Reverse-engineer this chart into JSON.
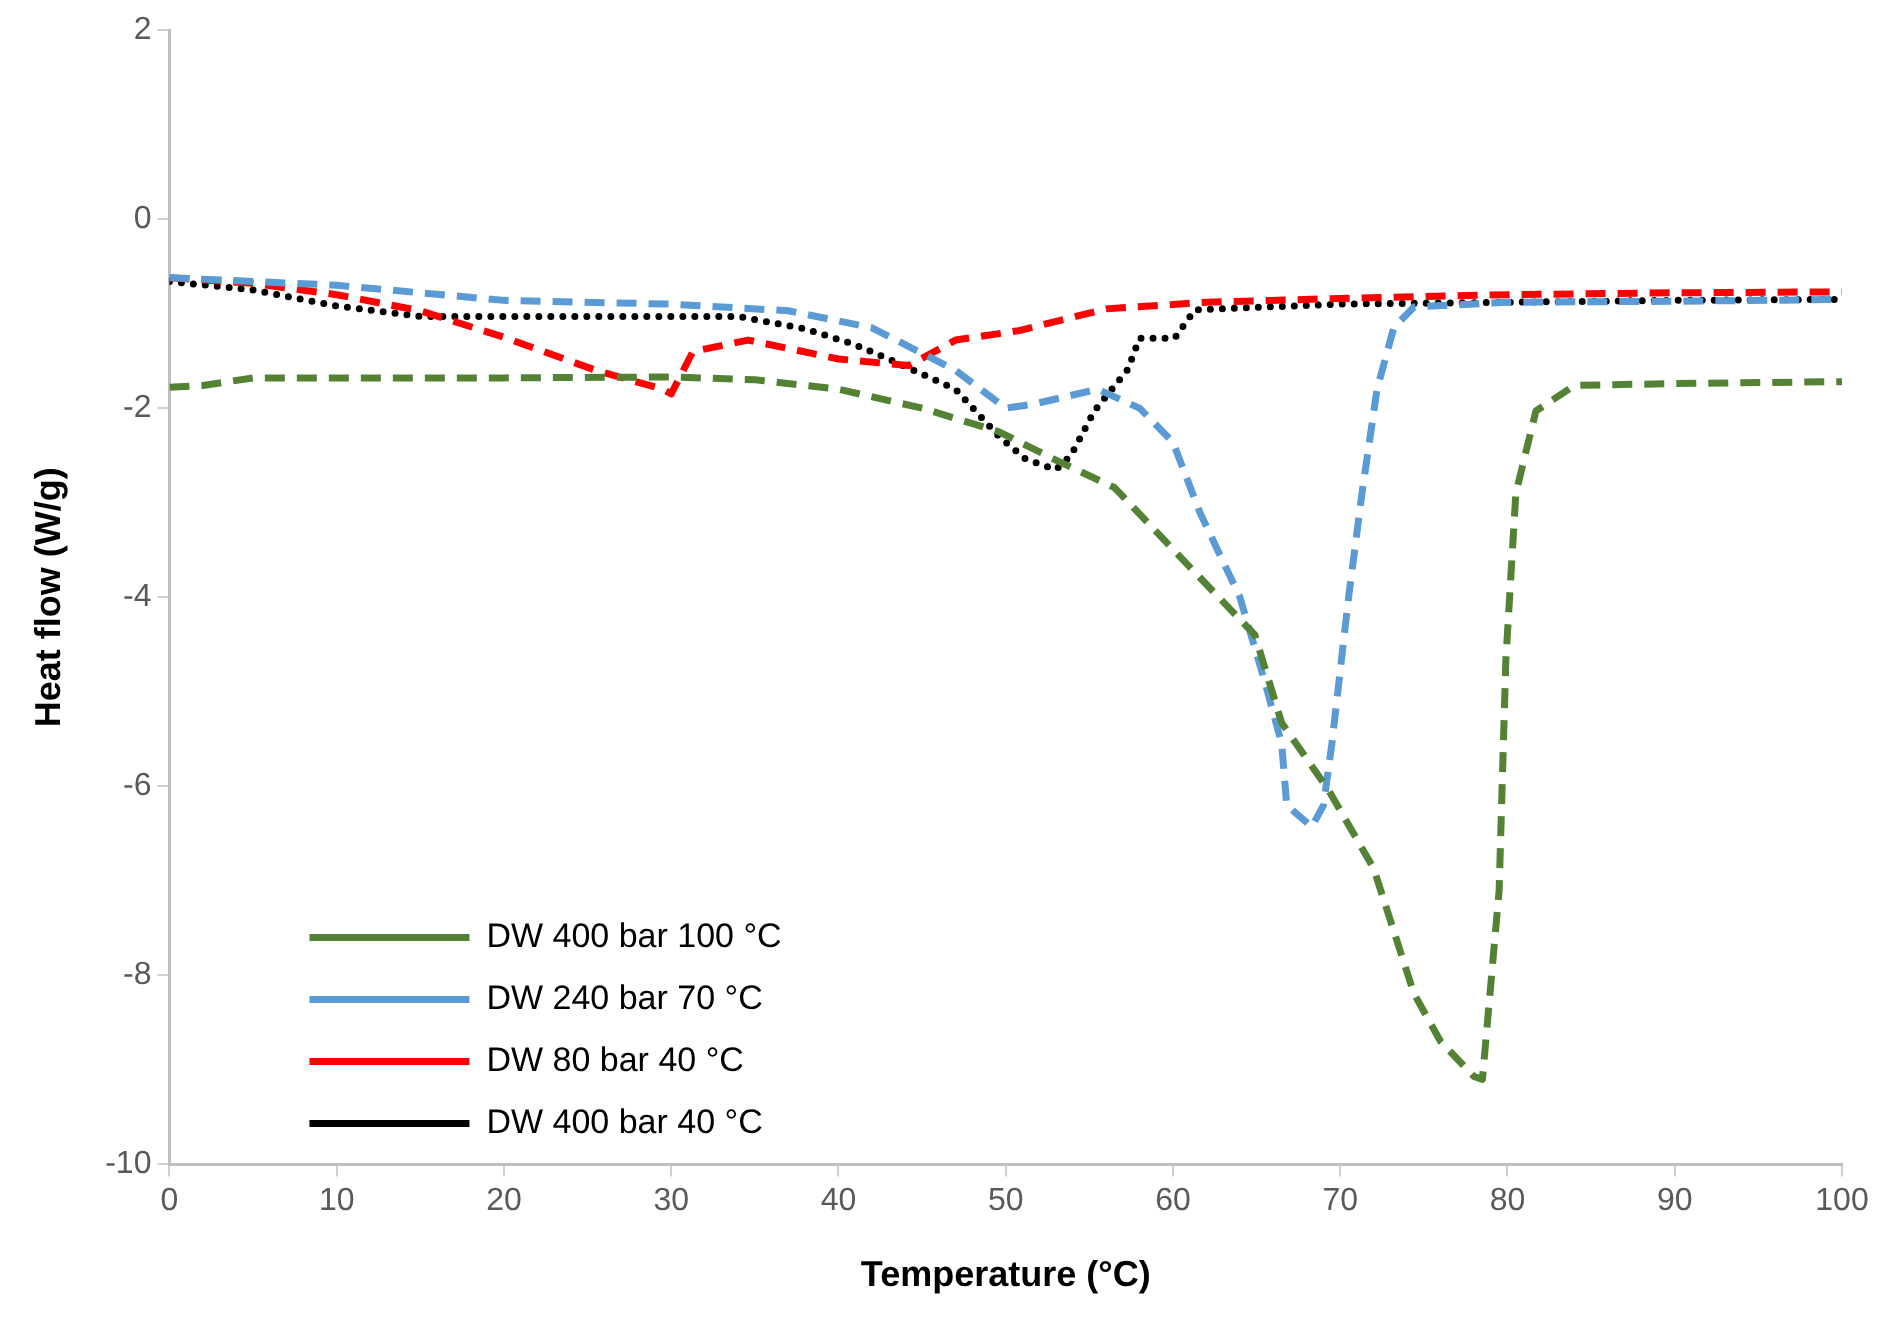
{
  "chart_data": {
    "type": "line",
    "xlabel": "Temperature (°C)",
    "ylabel": "Heat flow (W/g)",
    "xlim": [
      0,
      100
    ],
    "xticks": [
      0,
      10,
      20,
      30,
      40,
      50,
      60,
      70,
      80,
      90,
      100
    ],
    "ylim": [
      -10,
      2
    ],
    "yticks": [
      -10,
      -8,
      -6,
      -4,
      -2,
      0,
      2
    ],
    "grid": false,
    "legend": "bottom left",
    "marker": "none",
    "series": [
      {
        "name": "DW 400 bar 100 °C",
        "color": "#548235",
        "line_style": "dashed",
        "x": [
          0,
          2,
          5,
          10,
          20,
          30,
          35,
          40,
          45,
          49.6,
          53,
          56.5,
          61,
          64.9,
          66.5,
          69.3,
          72,
          74.4,
          76,
          78,
          78.5,
          79.5,
          79.9,
          80.5,
          81.7,
          84,
          90,
          100
        ],
        "values": [
          -1.78,
          -1.76,
          -1.68,
          -1.68,
          -1.68,
          -1.67,
          -1.7,
          -1.8,
          -2.0,
          -2.25,
          -2.55,
          -2.84,
          -3.68,
          -4.4,
          -5.33,
          -6.04,
          -6.87,
          -8.19,
          -8.7,
          -9.07,
          -9.1,
          -7.1,
          -4.67,
          -2.9,
          -2.03,
          -1.76,
          -1.74,
          -1.72
        ]
      },
      {
        "name": "DW 240 bar 70 °C",
        "color": "#5b9bd5",
        "line_style": "dashed",
        "x": [
          0,
          5,
          10,
          20,
          30,
          37,
          42,
          47,
          50,
          51.6,
          55.5,
          58,
          60,
          61.6,
          64,
          65.5,
          66.5,
          66.8,
          68.3,
          69,
          69.5,
          70.5,
          71.3,
          72.2,
          73.2,
          74.4,
          80,
          90,
          100
        ],
        "values": [
          -0.62,
          -0.66,
          -0.7,
          -0.86,
          -0.9,
          -0.97,
          -1.15,
          -1.6,
          -2.0,
          -1.96,
          -1.8,
          -2.0,
          -2.36,
          -3.1,
          -4.0,
          -4.9,
          -5.55,
          -6.2,
          -6.43,
          -6.2,
          -5.55,
          -4.0,
          -2.9,
          -1.8,
          -1.15,
          -0.93,
          -0.88,
          -0.87,
          -0.85
        ]
      },
      {
        "name": "DW 80 bar 40 °C",
        "color": "#ff0000",
        "line_style": "dashed",
        "x": [
          0,
          5,
          10,
          15,
          20,
          25.5,
          29.5,
          30,
          31.3,
          34.6,
          40,
          44.2,
          47,
          50.8,
          56,
          62,
          70,
          80,
          90,
          100
        ],
        "values": [
          -0.62,
          -0.68,
          -0.8,
          -0.97,
          -1.25,
          -1.6,
          -1.8,
          -1.85,
          -1.4,
          -1.28,
          -1.48,
          -1.55,
          -1.28,
          -1.18,
          -0.95,
          -0.88,
          -0.84,
          -0.8,
          -0.78,
          -0.77
        ]
      },
      {
        "name": "DW 400 bar 40 °C",
        "color": "#000000",
        "line_style": "dotted",
        "x": [
          0,
          5,
          10,
          15,
          19,
          34,
          38,
          41,
          43.5,
          47,
          49.6,
          51.2,
          53,
          53.9,
          55.3,
          57.3,
          58,
          60.1,
          61.3,
          70,
          80,
          90,
          100
        ],
        "values": [
          -0.66,
          -0.75,
          -0.92,
          -1.03,
          -1.03,
          -1.03,
          -1.16,
          -1.33,
          -1.52,
          -1.8,
          -2.3,
          -2.54,
          -2.65,
          -2.5,
          -2.03,
          -1.59,
          -1.26,
          -1.26,
          -0.96,
          -0.9,
          -0.88,
          -0.86,
          -0.85
        ]
      }
    ]
  }
}
